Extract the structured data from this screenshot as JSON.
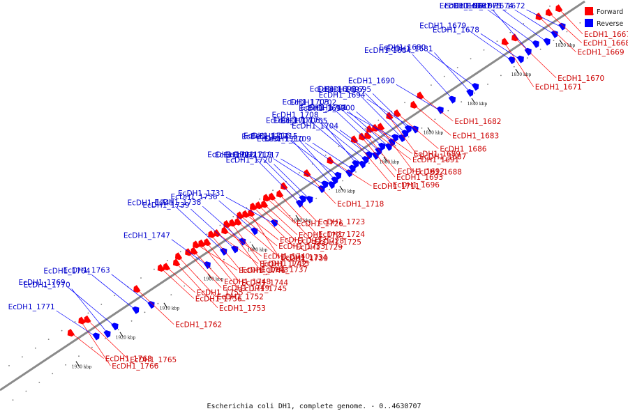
{
  "caption": "Escherichia coli DH1, complete genome. - 0..4630707",
  "colors": {
    "forward": "#ff0000",
    "reverse": "#0000ff",
    "axis": "#8a8a8a",
    "tick": "#000000"
  },
  "legend": [
    {
      "label": "Forward",
      "color": "#ff0000",
      "strand": "forward"
    },
    {
      "label": "Reverse",
      "color": "#0000ff",
      "strand": "reverse"
    }
  ],
  "track": {
    "start_kbp": 1812,
    "end_kbp": 1945
  },
  "ticks_kbp": [
    {
      "kbp": 1820,
      "label": "1820 kbp"
    },
    {
      "kbp": 1830,
      "label": "1830 kbp"
    },
    {
      "kbp": 1840,
      "label": "1840 kbp"
    },
    {
      "kbp": 1850,
      "label": "1850 kbp"
    },
    {
      "kbp": 1860,
      "label": "1860 kbp"
    },
    {
      "kbp": 1870,
      "label": "1870 kbp"
    },
    {
      "kbp": 1880,
      "label": "1880 kbp"
    },
    {
      "kbp": 1890,
      "label": "1890 kbp"
    },
    {
      "kbp": 1900,
      "label": "1900 kbp"
    },
    {
      "kbp": 1910,
      "label": "1910 kbp"
    },
    {
      "kbp": 1920,
      "label": "1920 kbp"
    },
    {
      "kbp": 1930,
      "label": "1930 kbp"
    }
  ],
  "forward_genes": [
    {
      "label": "EcDH1_1667",
      "kbp": 1817.0
    },
    {
      "label": "EcDH1_1668",
      "kbp": 1819.0
    },
    {
      "label": "EcDH1_1669",
      "kbp": 1821.0
    },
    {
      "label": "EcDH1_1670",
      "kbp": 1827.0
    },
    {
      "label": "EcDH1_1671",
      "kbp": 1829.0
    },
    {
      "label": "EcDH1_1682",
      "kbp": 1848.0
    },
    {
      "label": "EcDH1_1683",
      "kbp": 1850.0
    },
    {
      "label": "EcDH1_1686",
      "kbp": 1853.5
    },
    {
      "label": "EcDH1_1687",
      "kbp": 1855.0
    },
    {
      "label": "EcDH1_1688",
      "kbp": 1857.5
    },
    {
      "label": "EcDH1_1689",
      "kbp": 1858.5
    },
    {
      "label": "EcDH1_1691",
      "kbp": 1859.5
    },
    {
      "label": "EcDH1_1692",
      "kbp": 1860.5
    },
    {
      "label": "EcDH1_1693",
      "kbp": 1861.5
    },
    {
      "label": "EcDH1_1696",
      "kbp": 1863.0
    },
    {
      "label": "EcDH1_1711",
      "kbp": 1869.0
    },
    {
      "label": "EcDH1_1718",
      "kbp": 1874.0
    },
    {
      "label": "EcDH1_1723",
      "kbp": 1879.0
    },
    {
      "label": "EcDH1_1724",
      "kbp": 1880.5
    },
    {
      "label": "EcDH1_1725",
      "kbp": 1882.0
    },
    {
      "label": "EcDH1_1726",
      "kbp": 1883.0
    },
    {
      "label": "EcDH1_1727",
      "kbp": 1884.0
    },
    {
      "label": "EcDH1_1728",
      "kbp": 1885.0
    },
    {
      "label": "EcDH1_1729",
      "kbp": 1886.0
    },
    {
      "label": "EcDH1_1730",
      "kbp": 1887.0
    },
    {
      "label": "EcDH1_1732",
      "kbp": 1888.0
    },
    {
      "label": "EcDH1_1733",
      "kbp": 1889.0
    },
    {
      "label": "EcDH1_1734",
      "kbp": 1890.0
    },
    {
      "label": "EcDH1_1735",
      "kbp": 1891.0
    },
    {
      "label": "EcDH1_1737",
      "kbp": 1892.0
    },
    {
      "label": "EcDH1_1740",
      "kbp": 1893.0
    },
    {
      "label": "EcDH1_1742",
      "kbp": 1894.5
    },
    {
      "label": "EcDH1_1743",
      "kbp": 1895.5
    },
    {
      "label": "EcDH1_1744",
      "kbp": 1897.0
    },
    {
      "label": "EcDH1_1745",
      "kbp": 1898.0
    },
    {
      "label": "EcDH1_1746",
      "kbp": 1899.0
    },
    {
      "label": "EcDH1_1748",
      "kbp": 1900.0
    },
    {
      "label": "EcDH1_1749",
      "kbp": 1901.0
    },
    {
      "label": "EcDH1_1752",
      "kbp": 1903.0
    },
    {
      "label": "EcDH1_1753",
      "kbp": 1904.0
    },
    {
      "label": "EcDH1_1755",
      "kbp": 1906.0
    },
    {
      "label": "EcDH1_1756",
      "kbp": 1907.0
    },
    {
      "label": "EcDH1_1762",
      "kbp": 1913.0
    },
    {
      "label": "EcDH1_1765",
      "kbp": 1924.0
    },
    {
      "label": "EcDH1_1766",
      "kbp": 1925.0
    },
    {
      "label": "EcDH1_1768",
      "kbp": 1928.0
    }
  ],
  "reverse_genes": [
    {
      "label": "EcDH1_1672",
      "kbp": 1818.0
    },
    {
      "label": "EcDH1_1674",
      "kbp": 1820.0
    },
    {
      "label": "EcDH1_1675",
      "kbp": 1822.0
    },
    {
      "label": "EcDH1_1676",
      "kbp": 1824.0
    },
    {
      "label": "EcDH1_1677",
      "kbp": 1826.0
    },
    {
      "label": "EcDH1_1678",
      "kbp": 1828.0
    },
    {
      "label": "EcDH1_1679",
      "kbp": 1829.5
    },
    {
      "label": "EcDH1_1680",
      "kbp": 1838.0
    },
    {
      "label": "EcDH1_1681",
      "kbp": 1839.5
    },
    {
      "label": "EcDH1_1684",
      "kbp": 1843.0
    },
    {
      "label": "EcDH1_1690",
      "kbp": 1846.0
    },
    {
      "label": "EcDH1_1694",
      "kbp": 1852.0
    },
    {
      "label": "EcDH1_1695",
      "kbp": 1853.0
    },
    {
      "label": "EcDH1_1697",
      "kbp": 1854.0
    },
    {
      "label": "EcDH1_1698",
      "kbp": 1855.0
    },
    {
      "label": "EcDH1_1699",
      "kbp": 1856.0
    },
    {
      "label": "EcDH1_1700",
      "kbp": 1857.0
    },
    {
      "label": "EcDH1_1701",
      "kbp": 1858.0
    },
    {
      "label": "EcDH1_1702",
      "kbp": 1859.0
    },
    {
      "label": "EcDH1_1703",
      "kbp": 1860.0
    },
    {
      "label": "EcDH1_1704",
      "kbp": 1861.0
    },
    {
      "label": "EcDH1_1705",
      "kbp": 1862.0
    },
    {
      "label": "EcDH1_1706",
      "kbp": 1863.0
    },
    {
      "label": "EcDH1_1707",
      "kbp": 1864.0
    },
    {
      "label": "EcDH1_1708",
      "kbp": 1865.0
    },
    {
      "label": "EcDH1_1709",
      "kbp": 1866.0
    },
    {
      "label": "EcDH1_1710",
      "kbp": 1867.0
    },
    {
      "label": "EcDH1_1714",
      "kbp": 1869.0
    },
    {
      "label": "EcDH1_1715",
      "kbp": 1870.0
    },
    {
      "label": "EcDH1_1716",
      "kbp": 1871.0
    },
    {
      "label": "EcDH1_1717",
      "kbp": 1872.0
    },
    {
      "label": "EcDH1_1719",
      "kbp": 1873.0
    },
    {
      "label": "EcDH1_1720",
      "kbp": 1876.0
    },
    {
      "label": "EcDH1_1721",
      "kbp": 1877.0
    },
    {
      "label": "EcDH1_1722",
      "kbp": 1878.0
    },
    {
      "label": "EcDH1_1731",
      "kbp": 1884.0
    },
    {
      "label": "EcDH1_1736",
      "kbp": 1888.0
    },
    {
      "label": "EcDH1_1738",
      "kbp": 1891.0
    },
    {
      "label": "EcDH1_1739",
      "kbp": 1893.0
    },
    {
      "label": "EcDH1_1741",
      "kbp": 1895.0
    },
    {
      "label": "EcDH1_1747",
      "kbp": 1899.0
    },
    {
      "label": "EcDH1_1763",
      "kbp": 1912.0
    },
    {
      "label": "EcDH1_1764",
      "kbp": 1915.0
    },
    {
      "label": "EcDH1_1769",
      "kbp": 1920.0
    },
    {
      "label": "EcDH1_1770",
      "kbp": 1922.0
    },
    {
      "label": "EcDH1_1771",
      "kbp": 1924.0
    }
  ]
}
